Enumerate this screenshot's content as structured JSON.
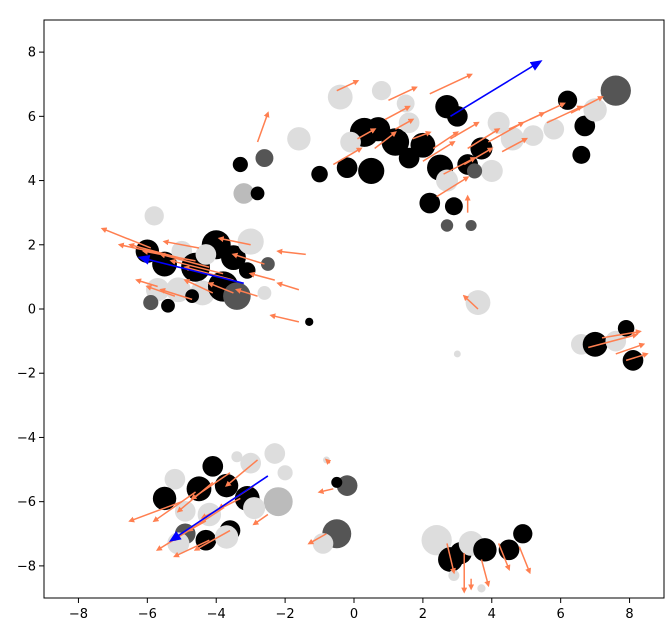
{
  "chart_data": {
    "type": "scatter",
    "title": "",
    "xlabel": "",
    "ylabel": "",
    "xlim": [
      -9,
      9
    ],
    "ylim": [
      -9,
      9
    ],
    "x_ticks": [
      -8,
      -6,
      -4,
      -2,
      0,
      2,
      4,
      6,
      8
    ],
    "y_ticks": [
      -8,
      -6,
      -4,
      -2,
      0,
      2,
      4,
      6,
      8
    ],
    "grid": false,
    "legend": null,
    "colors": {
      "arrow": "#ff7f50",
      "centroid_arrow": "#0000ff",
      "black": "#000000",
      "dark_gray": "#555555",
      "light_gray": "#dddddd",
      "gray": "#bbbbbb"
    },
    "centroid_arrows": [
      {
        "x": 2.8,
        "y": 6.0,
        "dx": 2.6,
        "dy": 1.7
      },
      {
        "x": -3.2,
        "y": 0.8,
        "dx": -3.0,
        "dy": 0.8
      },
      {
        "x": -2.5,
        "y": -5.2,
        "dx": -2.8,
        "dy": -2.0
      }
    ],
    "points": [
      {
        "x": 0.3,
        "y": 5.5,
        "s": 0.42,
        "c": "black"
      },
      {
        "x": 0.7,
        "y": 5.6,
        "s": 0.35,
        "c": "black"
      },
      {
        "x": 1.2,
        "y": 5.2,
        "s": 0.4,
        "c": "black"
      },
      {
        "x": 1.6,
        "y": 4.7,
        "s": 0.3,
        "c": "black"
      },
      {
        "x": 2.0,
        "y": 5.1,
        "s": 0.36,
        "c": "black"
      },
      {
        "x": 2.5,
        "y": 4.4,
        "s": 0.38,
        "c": "black"
      },
      {
        "x": 3.3,
        "y": 4.5,
        "s": 0.3,
        "c": "black"
      },
      {
        "x": 3.7,
        "y": 5.0,
        "s": 0.32,
        "c": "black"
      },
      {
        "x": 0.5,
        "y": 4.3,
        "s": 0.38,
        "c": "black"
      },
      {
        "x": -0.2,
        "y": 4.4,
        "s": 0.3,
        "c": "black"
      },
      {
        "x": 2.2,
        "y": 3.3,
        "s": 0.3,
        "c": "black"
      },
      {
        "x": 2.9,
        "y": 3.2,
        "s": 0.26,
        "c": "black"
      },
      {
        "x": -1.0,
        "y": 4.2,
        "s": 0.24,
        "c": "black"
      },
      {
        "x": -3.3,
        "y": 4.5,
        "s": 0.22,
        "c": "black"
      },
      {
        "x": -2.6,
        "y": 4.7,
        "s": 0.26,
        "c": "dark_gray"
      },
      {
        "x": -3.2,
        "y": 3.6,
        "s": 0.3,
        "c": "gray"
      },
      {
        "x": -2.8,
        "y": 3.6,
        "s": 0.2,
        "c": "black"
      },
      {
        "x": -1.6,
        "y": 5.3,
        "s": 0.34,
        "c": "light_gray"
      },
      {
        "x": -0.4,
        "y": 6.6,
        "s": 0.36,
        "c": "light_gray"
      },
      {
        "x": 0.8,
        "y": 6.8,
        "s": 0.28,
        "c": "light_gray"
      },
      {
        "x": 1.5,
        "y": 6.4,
        "s": 0.26,
        "c": "light_gray"
      },
      {
        "x": 2.7,
        "y": 6.3,
        "s": 0.34,
        "c": "black"
      },
      {
        "x": 3.0,
        "y": 6.0,
        "s": 0.3,
        "c": "black"
      },
      {
        "x": 4.2,
        "y": 5.8,
        "s": 0.32,
        "c": "light_gray"
      },
      {
        "x": 4.6,
        "y": 5.3,
        "s": 0.34,
        "c": "light_gray"
      },
      {
        "x": 5.2,
        "y": 5.4,
        "s": 0.3,
        "c": "light_gray"
      },
      {
        "x": 5.8,
        "y": 5.6,
        "s": 0.3,
        "c": "light_gray"
      },
      {
        "x": 6.2,
        "y": 6.5,
        "s": 0.28,
        "c": "black"
      },
      {
        "x": 6.7,
        "y": 5.7,
        "s": 0.3,
        "c": "black"
      },
      {
        "x": 6.6,
        "y": 4.8,
        "s": 0.26,
        "c": "black"
      },
      {
        "x": 7.0,
        "y": 6.2,
        "s": 0.34,
        "c": "light_gray"
      },
      {
        "x": 7.6,
        "y": 6.8,
        "s": 0.44,
        "c": "dark_gray"
      },
      {
        "x": 4.0,
        "y": 4.3,
        "s": 0.32,
        "c": "light_gray"
      },
      {
        "x": 3.5,
        "y": 4.3,
        "s": 0.22,
        "c": "dark_gray"
      },
      {
        "x": 2.7,
        "y": 4.0,
        "s": 0.32,
        "c": "light_gray"
      },
      {
        "x": 1.6,
        "y": 5.8,
        "s": 0.3,
        "c": "light_gray"
      },
      {
        "x": -0.1,
        "y": 5.2,
        "s": 0.3,
        "c": "light_gray"
      },
      {
        "x": 3.4,
        "y": 2.6,
        "s": 0.16,
        "c": "dark_gray"
      },
      {
        "x": 2.7,
        "y": 2.6,
        "s": 0.18,
        "c": "dark_gray"
      },
      {
        "x": -5.8,
        "y": 2.9,
        "s": 0.28,
        "c": "light_gray"
      },
      {
        "x": -6.0,
        "y": 1.8,
        "s": 0.34,
        "c": "black"
      },
      {
        "x": -5.5,
        "y": 1.4,
        "s": 0.36,
        "c": "black"
      },
      {
        "x": -5.0,
        "y": 1.8,
        "s": 0.3,
        "c": "light_gray"
      },
      {
        "x": -4.6,
        "y": 1.3,
        "s": 0.42,
        "c": "black"
      },
      {
        "x": -4.0,
        "y": 2.0,
        "s": 0.42,
        "c": "black"
      },
      {
        "x": -3.5,
        "y": 1.6,
        "s": 0.36,
        "c": "black"
      },
      {
        "x": -3.0,
        "y": 2.1,
        "s": 0.38,
        "c": "light_gray"
      },
      {
        "x": -5.7,
        "y": 0.6,
        "s": 0.34,
        "c": "light_gray"
      },
      {
        "x": -5.1,
        "y": 0.6,
        "s": 0.36,
        "c": "light_gray"
      },
      {
        "x": -4.4,
        "y": 0.5,
        "s": 0.36,
        "c": "light_gray"
      },
      {
        "x": -3.8,
        "y": 0.7,
        "s": 0.44,
        "c": "black"
      },
      {
        "x": -3.4,
        "y": 0.4,
        "s": 0.4,
        "c": "dark_gray"
      },
      {
        "x": -5.9,
        "y": 0.2,
        "s": 0.22,
        "c": "dark_gray"
      },
      {
        "x": -5.4,
        "y": 0.1,
        "s": 0.2,
        "c": "black"
      },
      {
        "x": -4.7,
        "y": 0.4,
        "s": 0.2,
        "c": "black"
      },
      {
        "x": -3.1,
        "y": 1.2,
        "s": 0.24,
        "c": "black"
      },
      {
        "x": -2.5,
        "y": 1.4,
        "s": 0.2,
        "c": "dark_gray"
      },
      {
        "x": -2.6,
        "y": 0.5,
        "s": 0.2,
        "c": "light_gray"
      },
      {
        "x": -4.3,
        "y": 1.7,
        "s": 0.3,
        "c": "light_gray"
      },
      {
        "x": -1.3,
        "y": -0.4,
        "s": 0.12,
        "c": "black"
      },
      {
        "x": 3.6,
        "y": 0.2,
        "s": 0.36,
        "c": "light_gray"
      },
      {
        "x": 3.0,
        "y": -1.4,
        "s": 0.1,
        "c": "light_gray"
      },
      {
        "x": 6.6,
        "y": -1.1,
        "s": 0.3,
        "c": "light_gray"
      },
      {
        "x": 7.0,
        "y": -1.1,
        "s": 0.36,
        "c": "black"
      },
      {
        "x": 7.6,
        "y": -1.0,
        "s": 0.3,
        "c": "light_gray"
      },
      {
        "x": 7.9,
        "y": -0.6,
        "s": 0.24,
        "c": "black"
      },
      {
        "x": 8.1,
        "y": -1.6,
        "s": 0.3,
        "c": "black"
      },
      {
        "x": -3.4,
        "y": -4.6,
        "s": 0.16,
        "c": "light_gray"
      },
      {
        "x": -2.3,
        "y": -4.5,
        "s": 0.3,
        "c": "light_gray"
      },
      {
        "x": -3.0,
        "y": -4.8,
        "s": 0.3,
        "c": "light_gray"
      },
      {
        "x": -4.1,
        "y": -4.9,
        "s": 0.3,
        "c": "black"
      },
      {
        "x": -5.2,
        "y": -5.3,
        "s": 0.3,
        "c": "light_gray"
      },
      {
        "x": -5.5,
        "y": -5.9,
        "s": 0.34,
        "c": "black"
      },
      {
        "x": -4.9,
        "y": -6.3,
        "s": 0.3,
        "c": "light_gray"
      },
      {
        "x": -4.5,
        "y": -5.6,
        "s": 0.36,
        "c": "black"
      },
      {
        "x": -3.7,
        "y": -5.5,
        "s": 0.34,
        "c": "black"
      },
      {
        "x": -3.1,
        "y": -5.9,
        "s": 0.36,
        "c": "black"
      },
      {
        "x": -2.2,
        "y": -6.0,
        "s": 0.42,
        "c": "gray"
      },
      {
        "x": -2.0,
        "y": -5.1,
        "s": 0.22,
        "c": "light_gray"
      },
      {
        "x": -4.2,
        "y": -6.4,
        "s": 0.34,
        "c": "light_gray"
      },
      {
        "x": -3.6,
        "y": -6.9,
        "s": 0.3,
        "c": "black"
      },
      {
        "x": -4.9,
        "y": -7.0,
        "s": 0.3,
        "c": "dark_gray"
      },
      {
        "x": -5.1,
        "y": -7.3,
        "s": 0.32,
        "c": "light_gray"
      },
      {
        "x": -4.3,
        "y": -7.2,
        "s": 0.3,
        "c": "black"
      },
      {
        "x": -3.7,
        "y": -7.1,
        "s": 0.34,
        "c": "light_gray"
      },
      {
        "x": -2.9,
        "y": -6.2,
        "s": 0.32,
        "c": "light_gray"
      },
      {
        "x": -0.5,
        "y": -7.0,
        "s": 0.42,
        "c": "dark_gray"
      },
      {
        "x": -0.9,
        "y": -7.3,
        "s": 0.3,
        "c": "light_gray"
      },
      {
        "x": -0.2,
        "y": -5.5,
        "s": 0.3,
        "c": "dark_gray"
      },
      {
        "x": -0.5,
        "y": -5.4,
        "s": 0.16,
        "c": "black"
      },
      {
        "x": -0.8,
        "y": -4.7,
        "s": 0.1,
        "c": "light_gray"
      },
      {
        "x": 2.4,
        "y": -7.2,
        "s": 0.44,
        "c": "light_gray"
      },
      {
        "x": 2.8,
        "y": -7.8,
        "s": 0.36,
        "c": "black"
      },
      {
        "x": 3.1,
        "y": -7.6,
        "s": 0.32,
        "c": "black"
      },
      {
        "x": 3.4,
        "y": -7.3,
        "s": 0.36,
        "c": "light_gray"
      },
      {
        "x": 3.8,
        "y": -7.5,
        "s": 0.34,
        "c": "black"
      },
      {
        "x": 4.5,
        "y": -7.5,
        "s": 0.3,
        "c": "black"
      },
      {
        "x": 4.9,
        "y": -7.0,
        "s": 0.28,
        "c": "black"
      },
      {
        "x": 2.9,
        "y": -8.3,
        "s": 0.16,
        "c": "light_gray"
      },
      {
        "x": 3.7,
        "y": -8.7,
        "s": 0.12,
        "c": "light_gray"
      }
    ],
    "arrows": [
      {
        "x": -5.9,
        "y": 1.9,
        "dx": -1.4,
        "dy": 0.6
      },
      {
        "x": -5.5,
        "y": 1.7,
        "dx": -1.3,
        "dy": 0.3
      },
      {
        "x": -5.1,
        "y": 1.6,
        "dx": -1.4,
        "dy": 0.4
      },
      {
        "x": -4.6,
        "y": 1.5,
        "dx": -1.5,
        "dy": 0.3
      },
      {
        "x": -4.2,
        "y": 1.3,
        "dx": -1.4,
        "dy": 0.4
      },
      {
        "x": -3.8,
        "y": 1.1,
        "dx": -1.5,
        "dy": 0.4
      },
      {
        "x": -3.5,
        "y": 0.9,
        "dx": -1.4,
        "dy": 0.4
      },
      {
        "x": -5.7,
        "y": 0.7,
        "dx": -0.6,
        "dy": 0.2
      },
      {
        "x": -5.2,
        "y": 0.4,
        "dx": -0.8,
        "dy": 0.3
      },
      {
        "x": -4.7,
        "y": 0.3,
        "dx": -0.9,
        "dy": 0.3
      },
      {
        "x": -4.1,
        "y": 0.5,
        "dx": -0.8,
        "dy": 0.4
      },
      {
        "x": -3.5,
        "y": 0.5,
        "dx": -0.7,
        "dy": 0.3
      },
      {
        "x": -2.8,
        "y": 0.4,
        "dx": -0.6,
        "dy": 0.2
      },
      {
        "x": -2.3,
        "y": 0.9,
        "dx": -0.7,
        "dy": 0.2
      },
      {
        "x": -2.6,
        "y": 1.4,
        "dx": -0.9,
        "dy": 0.3
      },
      {
        "x": -3.0,
        "y": 2.0,
        "dx": -0.9,
        "dy": 0.2
      },
      {
        "x": -1.4,
        "y": 1.7,
        "dx": -0.8,
        "dy": 0.1
      },
      {
        "x": -1.6,
        "y": -0.4,
        "dx": -0.8,
        "dy": 0.2
      },
      {
        "x": -1.6,
        "y": 0.6,
        "dx": -0.6,
        "dy": 0.2
      },
      {
        "x": -4.5,
        "y": 1.9,
        "dx": -1.0,
        "dy": 0.2
      },
      {
        "x": 0.1,
        "y": 5.3,
        "dx": 0.5,
        "dy": 0.3
      },
      {
        "x": 0.6,
        "y": 5.0,
        "dx": 0.6,
        "dy": 0.5
      },
      {
        "x": 1.2,
        "y": 5.6,
        "dx": 0.5,
        "dy": 0.3
      },
      {
        "x": 1.7,
        "y": 5.3,
        "dx": 0.5,
        "dy": 0.2
      },
      {
        "x": 2.3,
        "y": 5.0,
        "dx": 0.7,
        "dy": 0.5
      },
      {
        "x": 2.8,
        "y": 5.3,
        "dx": 0.8,
        "dy": 0.5
      },
      {
        "x": 3.3,
        "y": 5.0,
        "dx": 0.9,
        "dy": 0.6
      },
      {
        "x": 3.9,
        "y": 5.2,
        "dx": 1.0,
        "dy": 0.6
      },
      {
        "x": 4.5,
        "y": 5.6,
        "dx": 1.0,
        "dy": 0.5
      },
      {
        "x": 5.1,
        "y": 5.9,
        "dx": 1.0,
        "dy": 0.5
      },
      {
        "x": 5.6,
        "y": 5.8,
        "dx": 1.0,
        "dy": 0.5
      },
      {
        "x": 6.3,
        "y": 6.1,
        "dx": 0.9,
        "dy": 0.5
      },
      {
        "x": 2.0,
        "y": 4.6,
        "dx": 0.9,
        "dy": 0.6
      },
      {
        "x": 2.6,
        "y": 4.2,
        "dx": 0.9,
        "dy": 0.5
      },
      {
        "x": 3.2,
        "y": 4.5,
        "dx": 0.8,
        "dy": 0.5
      },
      {
        "x": 1.0,
        "y": 6.5,
        "dx": 0.8,
        "dy": 0.4
      },
      {
        "x": 2.2,
        "y": 6.7,
        "dx": 1.2,
        "dy": 0.6
      },
      {
        "x": -0.5,
        "y": 6.8,
        "dx": 0.6,
        "dy": 0.3
      },
      {
        "x": -2.8,
        "y": 5.2,
        "dx": 0.3,
        "dy": 0.9
      },
      {
        "x": -0.6,
        "y": 4.5,
        "dx": 0.8,
        "dy": 0.5
      },
      {
        "x": 2.4,
        "y": 3.5,
        "dx": 0.9,
        "dy": 0.6
      },
      {
        "x": 3.3,
        "y": 3.0,
        "dx": 0.0,
        "dy": 0.5
      },
      {
        "x": 0.9,
        "y": 5.9,
        "dx": 0.7,
        "dy": 0.4
      },
      {
        "x": 4.3,
        "y": 4.9,
        "dx": 0.7,
        "dy": 0.4
      },
      {
        "x": -4.8,
        "y": -6.9,
        "dx": -0.9,
        "dy": -0.6
      },
      {
        "x": -4.3,
        "y": -6.6,
        "dx": -1.0,
        "dy": -0.6
      },
      {
        "x": -3.8,
        "y": -6.2,
        "dx": -1.0,
        "dy": -0.7
      },
      {
        "x": -3.3,
        "y": -5.9,
        "dx": -1.1,
        "dy": -0.6
      },
      {
        "x": -2.9,
        "y": -5.5,
        "dx": -1.0,
        "dy": -0.7
      },
      {
        "x": -5.0,
        "y": -6.0,
        "dx": -1.5,
        "dy": -0.6
      },
      {
        "x": -4.6,
        "y": -5.7,
        "dx": -1.2,
        "dy": -0.9
      },
      {
        "x": -4.1,
        "y": -5.4,
        "dx": -1.0,
        "dy": -0.9
      },
      {
        "x": -3.6,
        "y": -5.1,
        "dx": -1.1,
        "dy": -0.8
      },
      {
        "x": -2.8,
        "y": -4.7,
        "dx": -0.9,
        "dy": -0.8
      },
      {
        "x": -4.2,
        "y": -7.2,
        "dx": -1.0,
        "dy": -0.5
      },
      {
        "x": -3.6,
        "y": -6.9,
        "dx": -1.0,
        "dy": -0.6
      },
      {
        "x": -2.5,
        "y": -6.4,
        "dx": -0.4,
        "dy": -0.3
      },
      {
        "x": -0.6,
        "y": -5.6,
        "dx": -0.4,
        "dy": -0.1
      },
      {
        "x": -0.8,
        "y": -7.0,
        "dx": -0.5,
        "dy": -0.3
      },
      {
        "x": -0.7,
        "y": -4.8,
        "dx": -0.1,
        "dy": 0.1
      },
      {
        "x": 2.7,
        "y": -7.3,
        "dx": 0.2,
        "dy": -0.9
      },
      {
        "x": 3.2,
        "y": -7.6,
        "dx": 0.0,
        "dy": -1.2
      },
      {
        "x": 3.7,
        "y": -7.8,
        "dx": 0.2,
        "dy": -0.8
      },
      {
        "x": 4.2,
        "y": -7.3,
        "dx": 0.3,
        "dy": -0.8
      },
      {
        "x": 4.8,
        "y": -7.4,
        "dx": 0.3,
        "dy": -0.8
      },
      {
        "x": 3.4,
        "y": -8.4,
        "dx": 0.0,
        "dy": -0.3
      },
      {
        "x": 6.8,
        "y": -1.2,
        "dx": 1.4,
        "dy": 0.4
      },
      {
        "x": 7.2,
        "y": -0.9,
        "dx": 1.1,
        "dy": 0.2
      },
      {
        "x": 7.6,
        "y": -1.4,
        "dx": 0.8,
        "dy": 0.3
      },
      {
        "x": 7.9,
        "y": -1.6,
        "dx": 0.6,
        "dy": 0.2
      },
      {
        "x": 3.6,
        "y": 0.0,
        "dx": -0.4,
        "dy": 0.4
      }
    ]
  }
}
